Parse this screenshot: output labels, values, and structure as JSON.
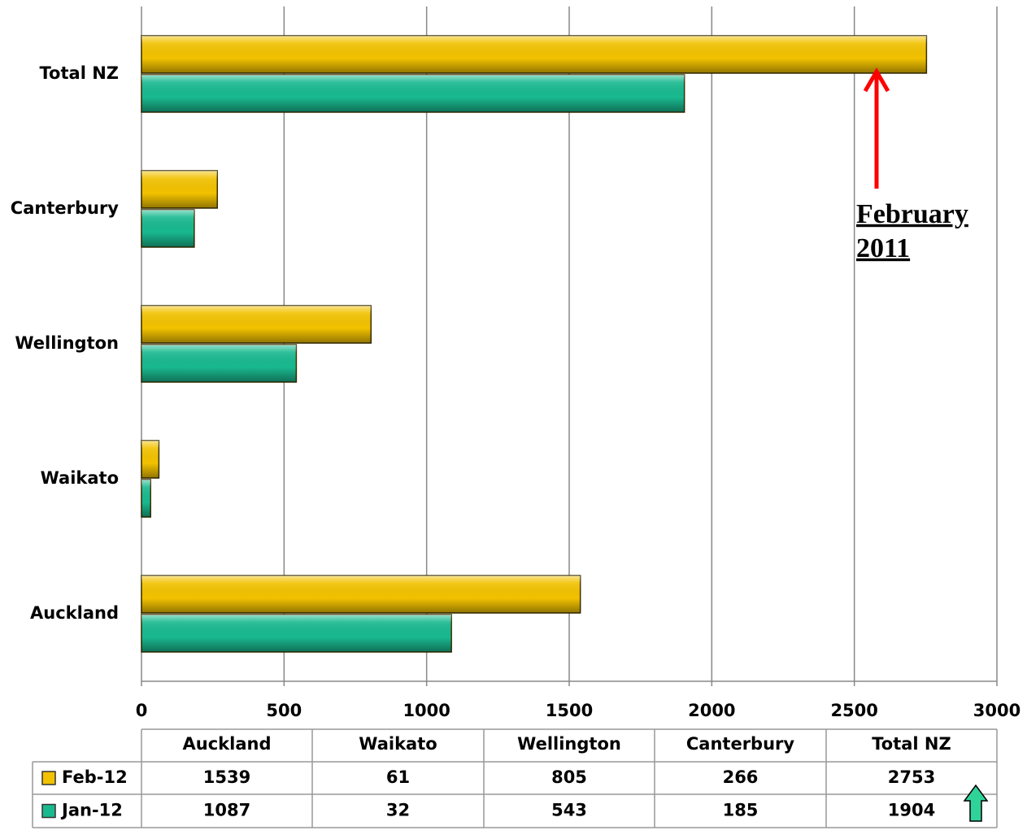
{
  "chart_data": {
    "type": "bar",
    "orientation": "horizontal",
    "categories": [
      "Auckland",
      "Waikato",
      "Wellington",
      "Canterbury",
      "Total NZ"
    ],
    "series": [
      {
        "name": "Feb-12",
        "color": "#f2c200",
        "values": [
          1539,
          61,
          805,
          266,
          2753
        ]
      },
      {
        "name": "Jan-12",
        "color": "#19b98f",
        "values": [
          1087,
          32,
          543,
          185,
          1904
        ]
      }
    ],
    "xlim": [
      0,
      3000
    ],
    "xticks": [
      0,
      500,
      1000,
      1500,
      2000,
      2500,
      3000
    ],
    "grid": true,
    "annotation": [
      "February",
      "2011"
    ],
    "annotation_color": "#ff0000"
  }
}
